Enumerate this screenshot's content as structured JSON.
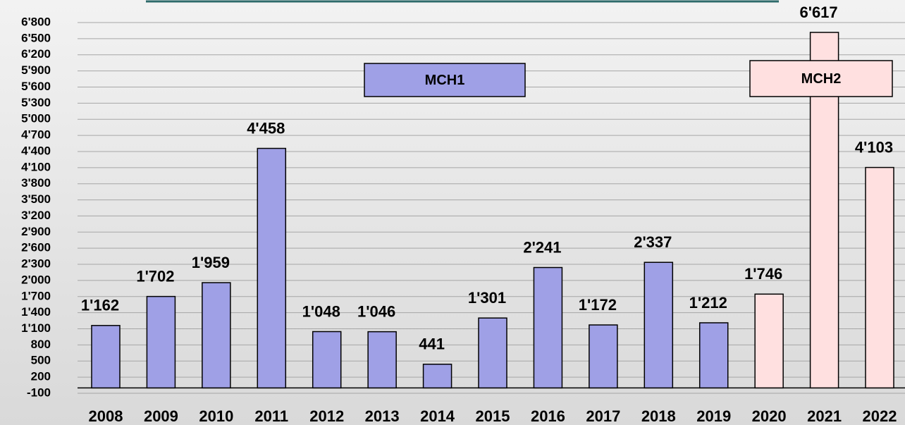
{
  "chart_data": {
    "type": "bar",
    "categories": [
      "2008",
      "2009",
      "2010",
      "2011",
      "2012",
      "2013",
      "2014",
      "2015",
      "2016",
      "2017",
      "2018",
      "2019",
      "2020",
      "2021",
      "2022"
    ],
    "series": [
      {
        "name": "MCH1",
        "color": "#9fa0e6",
        "values": [
          1162,
          1702,
          1959,
          4458,
          1048,
          1046,
          441,
          1301,
          2241,
          1172,
          2337,
          1212,
          null,
          null,
          null
        ],
        "value_labels": [
          "1'162",
          "1'702",
          "1'959",
          "4'458",
          "1'048",
          "1'046",
          "441",
          "1'301",
          "2'241",
          "1'172",
          "2'337",
          "1'212",
          null,
          null,
          null
        ]
      },
      {
        "name": "MCH2",
        "color": "#ffe0e0",
        "values": [
          null,
          null,
          null,
          null,
          null,
          null,
          null,
          null,
          null,
          null,
          null,
          null,
          1746,
          6617,
          4103
        ],
        "value_labels": [
          null,
          null,
          null,
          null,
          null,
          null,
          null,
          null,
          null,
          null,
          null,
          null,
          "1'746",
          "6'617",
          "4'103"
        ]
      }
    ],
    "ylim": [
      -100,
      6800
    ],
    "yticks": [
      -100,
      200,
      500,
      800,
      {
        "value": 1100,
        "label": "1'100"
      },
      {
        "value": 1400,
        "label": "1'400"
      },
      {
        "value": 1700,
        "label": "1'700"
      },
      {
        "value": 2000,
        "label": "2'000"
      },
      {
        "value": 2300,
        "label": "2'300"
      },
      {
        "value": 2600,
        "label": "2'600"
      },
      {
        "value": 2900,
        "label": "2'900"
      },
      {
        "value": 3200,
        "label": "3'200"
      },
      {
        "value": 3500,
        "label": "3'500"
      },
      {
        "value": 3800,
        "label": "3'800"
      },
      {
        "value": 4100,
        "label": "4'100"
      },
      {
        "value": 4400,
        "label": "4'400"
      },
      {
        "value": 4700,
        "label": "4'700"
      },
      {
        "value": 5000,
        "label": "5'000"
      },
      {
        "value": 5300,
        "label": "5'300"
      },
      {
        "value": 5600,
        "label": "5'600"
      },
      {
        "value": 5900,
        "label": "5'900"
      },
      {
        "value": 6200,
        "label": "6'200"
      },
      {
        "value": 6500,
        "label": "6'500"
      },
      {
        "value": 6800,
        "label": "6'800"
      }
    ],
    "grid": true
  }
}
